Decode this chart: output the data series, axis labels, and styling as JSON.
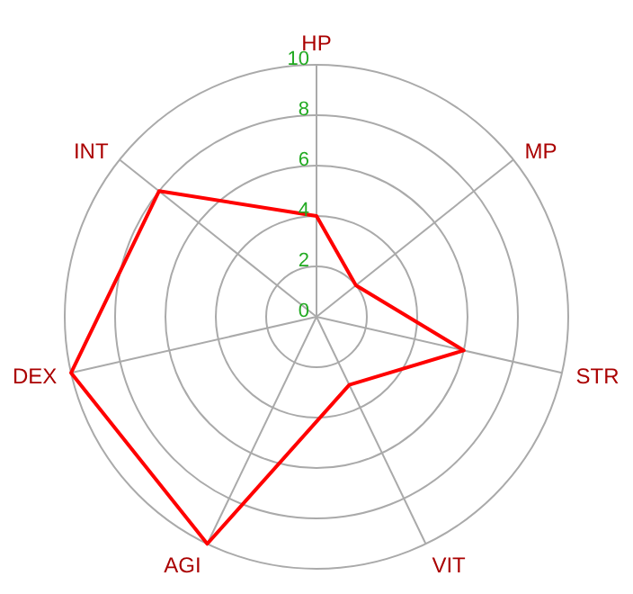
{
  "chart_data": {
    "type": "radar",
    "categories": [
      "HP",
      "MP",
      "STR",
      "VIT",
      "AGI",
      "DEX",
      "INT"
    ],
    "series": [
      {
        "color": "#ff0000",
        "values": [
          4,
          2,
          6,
          3,
          10,
          10,
          8
        ]
      }
    ],
    "ylim": [
      0,
      10
    ],
    "yticks": [
      0,
      2,
      4,
      6,
      8,
      10
    ],
    "grid": true,
    "marker": "none",
    "line_style": "solid"
  }
}
